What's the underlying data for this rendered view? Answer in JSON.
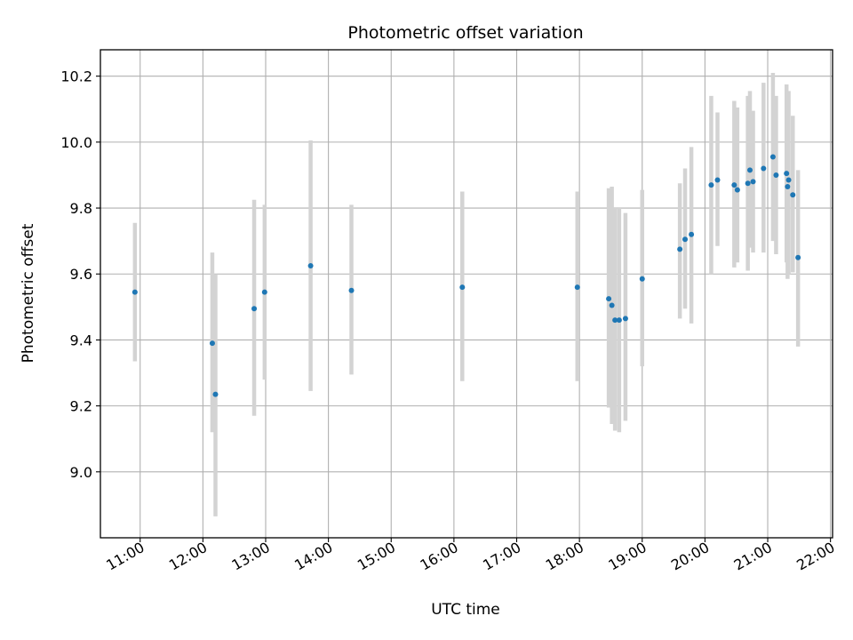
{
  "chart_data": {
    "type": "scatter",
    "title": "Photometric offset variation",
    "xlabel": "UTC time",
    "ylabel": "Photometric offset",
    "x_unit": "UTC time (HH:MM)",
    "xlim": [
      "10:22",
      "22:02"
    ],
    "ylim": [
      8.8,
      10.28
    ],
    "grid": true,
    "x_ticks": [
      "11:00",
      "12:00",
      "13:00",
      "14:00",
      "15:00",
      "16:00",
      "17:00",
      "18:00",
      "19:00",
      "20:00",
      "21:00",
      "22:00"
    ],
    "y_ticks": [
      "9.0",
      "9.2",
      "9.4",
      "9.6",
      "9.8",
      "10.0",
      "10.2"
    ],
    "marker_color": "#1f77b4",
    "errorbar_color": "#d3d3d3",
    "points": [
      {
        "t": "10:55",
        "y": 9.545,
        "lo": 9.335,
        "hi": 9.755
      },
      {
        "t": "12:09",
        "y": 9.39,
        "lo": 9.12,
        "hi": 9.665
      },
      {
        "t": "12:12",
        "y": 9.235,
        "lo": 8.865,
        "hi": 9.6
      },
      {
        "t": "12:49",
        "y": 9.495,
        "lo": 9.17,
        "hi": 9.825
      },
      {
        "t": "12:59",
        "y": 9.545,
        "lo": 9.28,
        "hi": 9.81
      },
      {
        "t": "13:43",
        "y": 9.625,
        "lo": 9.245,
        "hi": 10.005
      },
      {
        "t": "14:22",
        "y": 9.55,
        "lo": 9.295,
        "hi": 9.81
      },
      {
        "t": "16:08",
        "y": 9.56,
        "lo": 9.275,
        "hi": 9.85
      },
      {
        "t": "17:58",
        "y": 9.56,
        "lo": 9.275,
        "hi": 9.85
      },
      {
        "t": "18:28",
        "y": 9.525,
        "lo": 9.195,
        "hi": 9.86
      },
      {
        "t": "18:31",
        "y": 9.505,
        "lo": 9.145,
        "hi": 9.865
      },
      {
        "t": "18:34",
        "y": 9.46,
        "lo": 9.125,
        "hi": 9.8
      },
      {
        "t": "18:38",
        "y": 9.46,
        "lo": 9.12,
        "hi": 9.8
      },
      {
        "t": "18:44",
        "y": 9.465,
        "lo": 9.155,
        "hi": 9.785
      },
      {
        "t": "19:00",
        "y": 9.585,
        "lo": 9.32,
        "hi": 9.855
      },
      {
        "t": "19:36",
        "y": 9.675,
        "lo": 9.465,
        "hi": 9.875
      },
      {
        "t": "19:41",
        "y": 9.705,
        "lo": 9.495,
        "hi": 9.92
      },
      {
        "t": "19:47",
        "y": 9.72,
        "lo": 9.45,
        "hi": 9.985
      },
      {
        "t": "20:06",
        "y": 9.87,
        "lo": 9.6,
        "hi": 10.14
      },
      {
        "t": "20:12",
        "y": 9.885,
        "lo": 9.685,
        "hi": 10.09
      },
      {
        "t": "20:28",
        "y": 9.87,
        "lo": 9.62,
        "hi": 10.125
      },
      {
        "t": "20:31",
        "y": 9.855,
        "lo": 9.635,
        "hi": 10.105
      },
      {
        "t": "20:41",
        "y": 9.875,
        "lo": 9.61,
        "hi": 10.14
      },
      {
        "t": "20:43",
        "y": 9.915,
        "lo": 9.68,
        "hi": 10.155
      },
      {
        "t": "20:46",
        "y": 9.88,
        "lo": 9.665,
        "hi": 10.095
      },
      {
        "t": "20:56",
        "y": 9.92,
        "lo": 9.665,
        "hi": 10.18
      },
      {
        "t": "21:05",
        "y": 9.955,
        "lo": 9.7,
        "hi": 10.21
      },
      {
        "t": "21:08",
        "y": 9.9,
        "lo": 9.66,
        "hi": 10.14
      },
      {
        "t": "21:18",
        "y": 9.905,
        "lo": 9.635,
        "hi": 10.175
      },
      {
        "t": "21:19",
        "y": 9.865,
        "lo": 9.585,
        "hi": 10.145
      },
      {
        "t": "21:20",
        "y": 9.885,
        "lo": 9.6,
        "hi": 10.155
      },
      {
        "t": "21:24",
        "y": 9.84,
        "lo": 9.605,
        "hi": 10.08
      },
      {
        "t": "21:29",
        "y": 9.65,
        "lo": 9.38,
        "hi": 9.915
      }
    ]
  }
}
